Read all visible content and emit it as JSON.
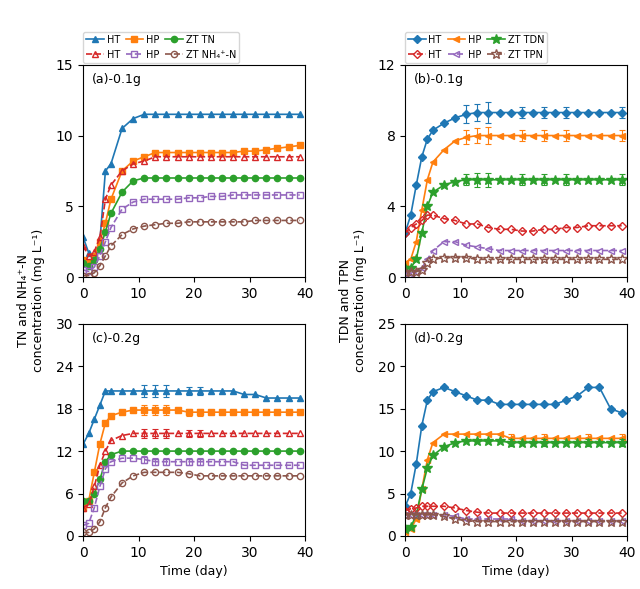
{
  "chart_data": [
    {
      "type": "line",
      "title": "(a)-0.1g",
      "ylabel": "TN and NH₄⁺-N\nconcentration (mg L⁻¹)",
      "x": [
        0,
        1,
        2,
        3,
        4,
        5,
        7,
        9,
        11,
        13,
        15,
        17,
        19,
        21,
        23,
        25,
        27,
        29,
        31,
        33,
        35,
        37,
        39
      ],
      "xlim": [
        0,
        40
      ],
      "xticks": [
        0,
        10,
        20,
        30,
        40
      ],
      "ylim": [
        0,
        15
      ],
      "yticks": [
        0,
        5,
        10,
        15
      ],
      "series": [
        {
          "name": "HT",
          "marker": "triangle",
          "line_style": "solid",
          "values": [
            2.8,
            1.7,
            1.5,
            2.5,
            7.5,
            8.0,
            10.5,
            11.2,
            11.5,
            11.5,
            11.5,
            11.5,
            11.5,
            11.5,
            11.5,
            11.5,
            11.5,
            11.5,
            11.5,
            11.5,
            11.5,
            11.5,
            11.5
          ]
        },
        {
          "name": "HP",
          "marker": "square",
          "line_style": "solid",
          "values": [
            1.2,
            1.0,
            1.5,
            2.5,
            3.8,
            5.5,
            7.5,
            8.2,
            8.5,
            8.8,
            8.8,
            8.8,
            8.8,
            8.8,
            8.8,
            8.8,
            8.8,
            8.9,
            8.9,
            9.0,
            9.1,
            9.2,
            9.3
          ]
        },
        {
          "name": "ZT TN",
          "marker": "circle",
          "line_style": "solid",
          "values": [
            1.0,
            0.8,
            1.2,
            2.0,
            3.2,
            4.5,
            6.0,
            6.8,
            7.0,
            7.0,
            7.0,
            7.0,
            7.0,
            7.0,
            7.0,
            7.0,
            7.0,
            7.0,
            7.0,
            7.0,
            7.0,
            7.0,
            7.0
          ]
        },
        {
          "name": "HT",
          "marker": "triangle",
          "line_style": "dashed",
          "values": [
            2.2,
            1.5,
            1.8,
            2.8,
            5.5,
            6.5,
            7.5,
            8.0,
            8.2,
            8.5,
            8.5,
            8.5,
            8.5,
            8.5,
            8.5,
            8.5,
            8.5,
            8.5,
            8.5,
            8.5,
            8.5,
            8.5,
            8.5
          ]
        },
        {
          "name": "HP",
          "marker": "square",
          "line_style": "dashed",
          "values": [
            0.5,
            0.4,
            0.7,
            1.5,
            2.5,
            3.5,
            4.8,
            5.3,
            5.5,
            5.5,
            5.5,
            5.5,
            5.6,
            5.6,
            5.7,
            5.7,
            5.8,
            5.8,
            5.8,
            5.8,
            5.8,
            5.8,
            5.8
          ]
        },
        {
          "name": "ZT NH₄⁺-N",
          "marker": "circle",
          "line_style": "dashed",
          "values": [
            0.1,
            0.1,
            0.3,
            0.8,
            1.5,
            2.2,
            3.0,
            3.4,
            3.6,
            3.7,
            3.8,
            3.8,
            3.9,
            3.9,
            3.9,
            3.9,
            3.9,
            3.9,
            4.0,
            4.0,
            4.0,
            4.0,
            4.0
          ]
        }
      ]
    },
    {
      "type": "line",
      "title": "(b)-0.1g",
      "ylabel": "TDN and TPN\nconcentration (mg L⁻¹)",
      "x": [
        0,
        1,
        2,
        3,
        4,
        5,
        7,
        9,
        11,
        13,
        15,
        17,
        19,
        21,
        23,
        25,
        27,
        29,
        31,
        33,
        35,
        37,
        39
      ],
      "xlim": [
        0,
        40
      ],
      "xticks": [
        0,
        10,
        20,
        30,
        40
      ],
      "ylim": [
        0,
        12
      ],
      "yticks": [
        0,
        4,
        8,
        12
      ],
      "series": [
        {
          "name": "HT",
          "marker": "diamond",
          "line_style": "solid",
          "values": [
            2.5,
            3.5,
            5.2,
            6.8,
            7.8,
            8.3,
            8.7,
            9.0,
            9.2,
            9.3,
            9.3,
            9.3,
            9.3,
            9.3,
            9.3,
            9.3,
            9.3,
            9.3,
            9.3,
            9.3,
            9.3,
            9.3,
            9.3
          ],
          "error_x": [
            11,
            13,
            15,
            21,
            25,
            29,
            39
          ],
          "errors": [
            0.5,
            0.5,
            0.6,
            0.3,
            0.3,
            0.3,
            0.3
          ]
        },
        {
          "name": "HP",
          "marker": "left triangle",
          "line_style": "solid",
          "values": [
            0.8,
            1.0,
            2.0,
            3.8,
            5.5,
            6.5,
            7.2,
            7.7,
            7.9,
            8.0,
            8.0,
            8.0,
            8.0,
            8.0,
            8.0,
            8.0,
            8.0,
            8.0,
            8.0,
            8.0,
            8.0,
            8.0,
            8.0
          ],
          "error_x": [
            11,
            13,
            15,
            21,
            25,
            29,
            39
          ],
          "errors": [
            0.4,
            0.4,
            0.5,
            0.3,
            0.3,
            0.3,
            0.3
          ]
        },
        {
          "name": "ZT TDN",
          "marker": "star",
          "line_style": "solid",
          "values": [
            0.5,
            0.5,
            1.0,
            2.5,
            4.0,
            4.8,
            5.2,
            5.4,
            5.5,
            5.5,
            5.5,
            5.5,
            5.5,
            5.5,
            5.5,
            5.5,
            5.5,
            5.5,
            5.5,
            5.5,
            5.5,
            5.5,
            5.5
          ],
          "error_x": [
            11,
            13,
            15,
            21,
            25,
            29,
            39
          ],
          "errors": [
            0.3,
            0.4,
            0.4,
            0.3,
            0.3,
            0.3,
            0.3
          ]
        },
        {
          "name": "HT",
          "marker": "diamond",
          "line_style": "dashed",
          "values": [
            2.5,
            2.8,
            3.0,
            3.2,
            3.5,
            3.5,
            3.3,
            3.2,
            3.0,
            3.0,
            2.8,
            2.7,
            2.7,
            2.6,
            2.6,
            2.7,
            2.7,
            2.8,
            2.8,
            2.9,
            2.9,
            2.9,
            2.9
          ]
        },
        {
          "name": "HP",
          "marker": "left triangle",
          "line_style": "dashed",
          "values": [
            0.2,
            0.2,
            0.3,
            0.5,
            1.0,
            1.5,
            2.0,
            2.0,
            1.8,
            1.7,
            1.6,
            1.5,
            1.5,
            1.5,
            1.5,
            1.5,
            1.5,
            1.5,
            1.5,
            1.5,
            1.5,
            1.5,
            1.5
          ]
        },
        {
          "name": "ZT TPN",
          "marker": "star",
          "line_style": "dashed",
          "values": [
            0.3,
            0.3,
            0.3,
            0.4,
            0.8,
            1.0,
            1.1,
            1.1,
            1.1,
            1.0,
            1.0,
            1.0,
            1.0,
            1.0,
            1.0,
            1.0,
            1.0,
            1.0,
            1.0,
            1.0,
            1.0,
            1.0,
            1.0
          ]
        }
      ]
    },
    {
      "type": "line",
      "title": "(c)-0.2g",
      "xlabel": "Time (day)",
      "x": [
        0,
        1,
        2,
        3,
        4,
        5,
        7,
        9,
        11,
        13,
        15,
        17,
        19,
        21,
        23,
        25,
        27,
        29,
        31,
        33,
        35,
        37,
        39
      ],
      "xlim": [
        0,
        40
      ],
      "xticks": [
        0,
        10,
        20,
        30,
        40
      ],
      "ylim": [
        0,
        30
      ],
      "yticks": [
        0,
        6,
        12,
        18,
        24,
        30
      ],
      "series": [
        {
          "marker": "triangle",
          "line_style": "solid",
          "values": [
            13.0,
            14.5,
            16.5,
            18.5,
            20.5,
            20.5,
            20.5,
            20.5,
            20.5,
            20.5,
            20.5,
            20.5,
            20.5,
            20.5,
            20.5,
            20.5,
            20.5,
            20.0,
            20.0,
            19.5,
            19.5,
            19.5,
            19.5
          ],
          "error_x": [
            11,
            13,
            15,
            19,
            21
          ],
          "errors": [
            0.8,
            0.8,
            0.8,
            0.6,
            0.6
          ]
        },
        {
          "marker": "square",
          "line_style": "solid",
          "values": [
            4.0,
            5.0,
            9.0,
            13.0,
            16.0,
            17.0,
            17.5,
            17.8,
            17.8,
            17.8,
            17.8,
            17.8,
            17.5,
            17.5,
            17.5,
            17.5,
            17.5,
            17.5,
            17.5,
            17.5,
            17.5,
            17.5,
            17.5
          ],
          "error_x": [
            11,
            13,
            15,
            19,
            21
          ],
          "errors": [
            0.7,
            0.7,
            0.7,
            0.5,
            0.5
          ]
        },
        {
          "marker": "circle",
          "line_style": "solid",
          "values": [
            5.0,
            5.0,
            6.0,
            8.0,
            10.5,
            11.5,
            12.0,
            12.0,
            12.0,
            12.0,
            12.0,
            12.0,
            12.0,
            12.0,
            12.0,
            12.0,
            12.0,
            12.0,
            12.0,
            12.0,
            12.0,
            12.0,
            12.0
          ]
        },
        {
          "marker": "triangle",
          "line_style": "dashed",
          "values": [
            4.0,
            4.5,
            7.0,
            10.0,
            12.0,
            13.5,
            14.2,
            14.5,
            14.5,
            14.5,
            14.5,
            14.5,
            14.5,
            14.5,
            14.5,
            14.5,
            14.5,
            14.5,
            14.5,
            14.5,
            14.5,
            14.5,
            14.5
          ],
          "error_x": [
            11,
            13,
            15,
            19,
            21
          ],
          "errors": [
            0.6,
            0.6,
            0.6,
            0.5,
            0.5
          ]
        },
        {
          "marker": "square",
          "line_style": "dashed",
          "values": [
            1.5,
            1.8,
            4.0,
            7.0,
            9.5,
            10.5,
            11.0,
            11.0,
            10.8,
            10.5,
            10.5,
            10.5,
            10.5,
            10.5,
            10.5,
            10.5,
            10.5,
            10.0,
            10.0,
            10.0,
            10.0,
            10.0,
            10.0
          ],
          "error_x": [
            11,
            13,
            15,
            19,
            21
          ],
          "errors": [
            0.5,
            0.5,
            0.5,
            0.5,
            0.5
          ]
        },
        {
          "marker": "circle",
          "line_style": "dashed",
          "values": [
            0.5,
            0.5,
            1.0,
            2.0,
            4.0,
            5.5,
            7.5,
            8.5,
            9.0,
            9.0,
            9.0,
            9.0,
            8.8,
            8.5,
            8.5,
            8.5,
            8.5,
            8.5,
            8.5,
            8.5,
            8.5,
            8.5,
            8.5
          ]
        }
      ]
    },
    {
      "type": "line",
      "title": "(d)-0.2g",
      "xlabel": "Time (day)",
      "x": [
        0,
        1,
        2,
        3,
        4,
        5,
        7,
        9,
        11,
        13,
        15,
        17,
        19,
        21,
        23,
        25,
        27,
        29,
        31,
        33,
        35,
        37,
        39
      ],
      "xlim": [
        0,
        40
      ],
      "xticks": [
        0,
        10,
        20,
        30,
        40
      ],
      "ylim": [
        0,
        25
      ],
      "yticks": [
        0,
        5,
        10,
        15,
        20,
        25
      ],
      "series": [
        {
          "marker": "diamond",
          "line_style": "solid",
          "values": [
            3.5,
            5.0,
            8.5,
            13.0,
            16.0,
            17.0,
            17.5,
            17.0,
            16.5,
            16.0,
            16.0,
            15.5,
            15.5,
            15.5,
            15.5,
            15.5,
            15.5,
            16.0,
            16.5,
            17.5,
            17.5,
            15.0,
            14.5
          ]
        },
        {
          "marker": "left triangle",
          "line_style": "solid",
          "values": [
            0.5,
            0.8,
            2.0,
            5.5,
            9.0,
            11.0,
            12.0,
            12.0,
            12.0,
            12.0,
            12.0,
            12.0,
            11.5,
            11.5,
            11.5,
            11.5,
            11.5,
            11.5,
            11.5,
            11.5,
            11.5,
            11.5,
            11.5
          ],
          "error_x": [
            19,
            25,
            33,
            39
          ],
          "errors": [
            0.5,
            0.5,
            0.5,
            0.5
          ]
        },
        {
          "marker": "star",
          "line_style": "solid",
          "values": [
            0.8,
            1.0,
            2.5,
            5.5,
            8.0,
            9.5,
            10.5,
            11.0,
            11.2,
            11.2,
            11.2,
            11.2,
            11.0,
            11.0,
            11.0,
            11.0,
            11.0,
            11.0,
            11.0,
            11.0,
            11.0,
            11.0,
            11.0
          ],
          "error_x": [
            19,
            25,
            33,
            39
          ],
          "errors": [
            0.4,
            0.4,
            0.4,
            0.4
          ]
        },
        {
          "marker": "diamond",
          "line_style": "dashed",
          "values": [
            3.0,
            3.2,
            3.3,
            3.5,
            3.5,
            3.5,
            3.5,
            3.3,
            3.0,
            2.8,
            2.7,
            2.7,
            2.7,
            2.7,
            2.7,
            2.7,
            2.7,
            2.7,
            2.7,
            2.7,
            2.7,
            2.7,
            2.7
          ]
        },
        {
          "marker": "left triangle",
          "line_style": "dashed",
          "values": [
            2.5,
            2.5,
            2.5,
            2.5,
            2.5,
            2.5,
            2.5,
            2.3,
            2.0,
            2.0,
            2.0,
            2.0,
            2.0,
            1.8,
            1.8,
            1.8,
            1.8,
            1.8,
            1.8,
            1.8,
            1.8,
            1.8,
            1.8
          ]
        },
        {
          "marker": "star",
          "line_style": "dashed",
          "values": [
            2.5,
            2.5,
            2.5,
            2.5,
            2.5,
            2.5,
            2.3,
            2.0,
            1.8,
            1.7,
            1.7,
            1.7,
            1.7,
            1.7,
            1.7,
            1.7,
            1.7,
            1.7,
            1.7,
            1.7,
            1.7,
            1.7,
            1.7
          ]
        }
      ]
    }
  ]
}
